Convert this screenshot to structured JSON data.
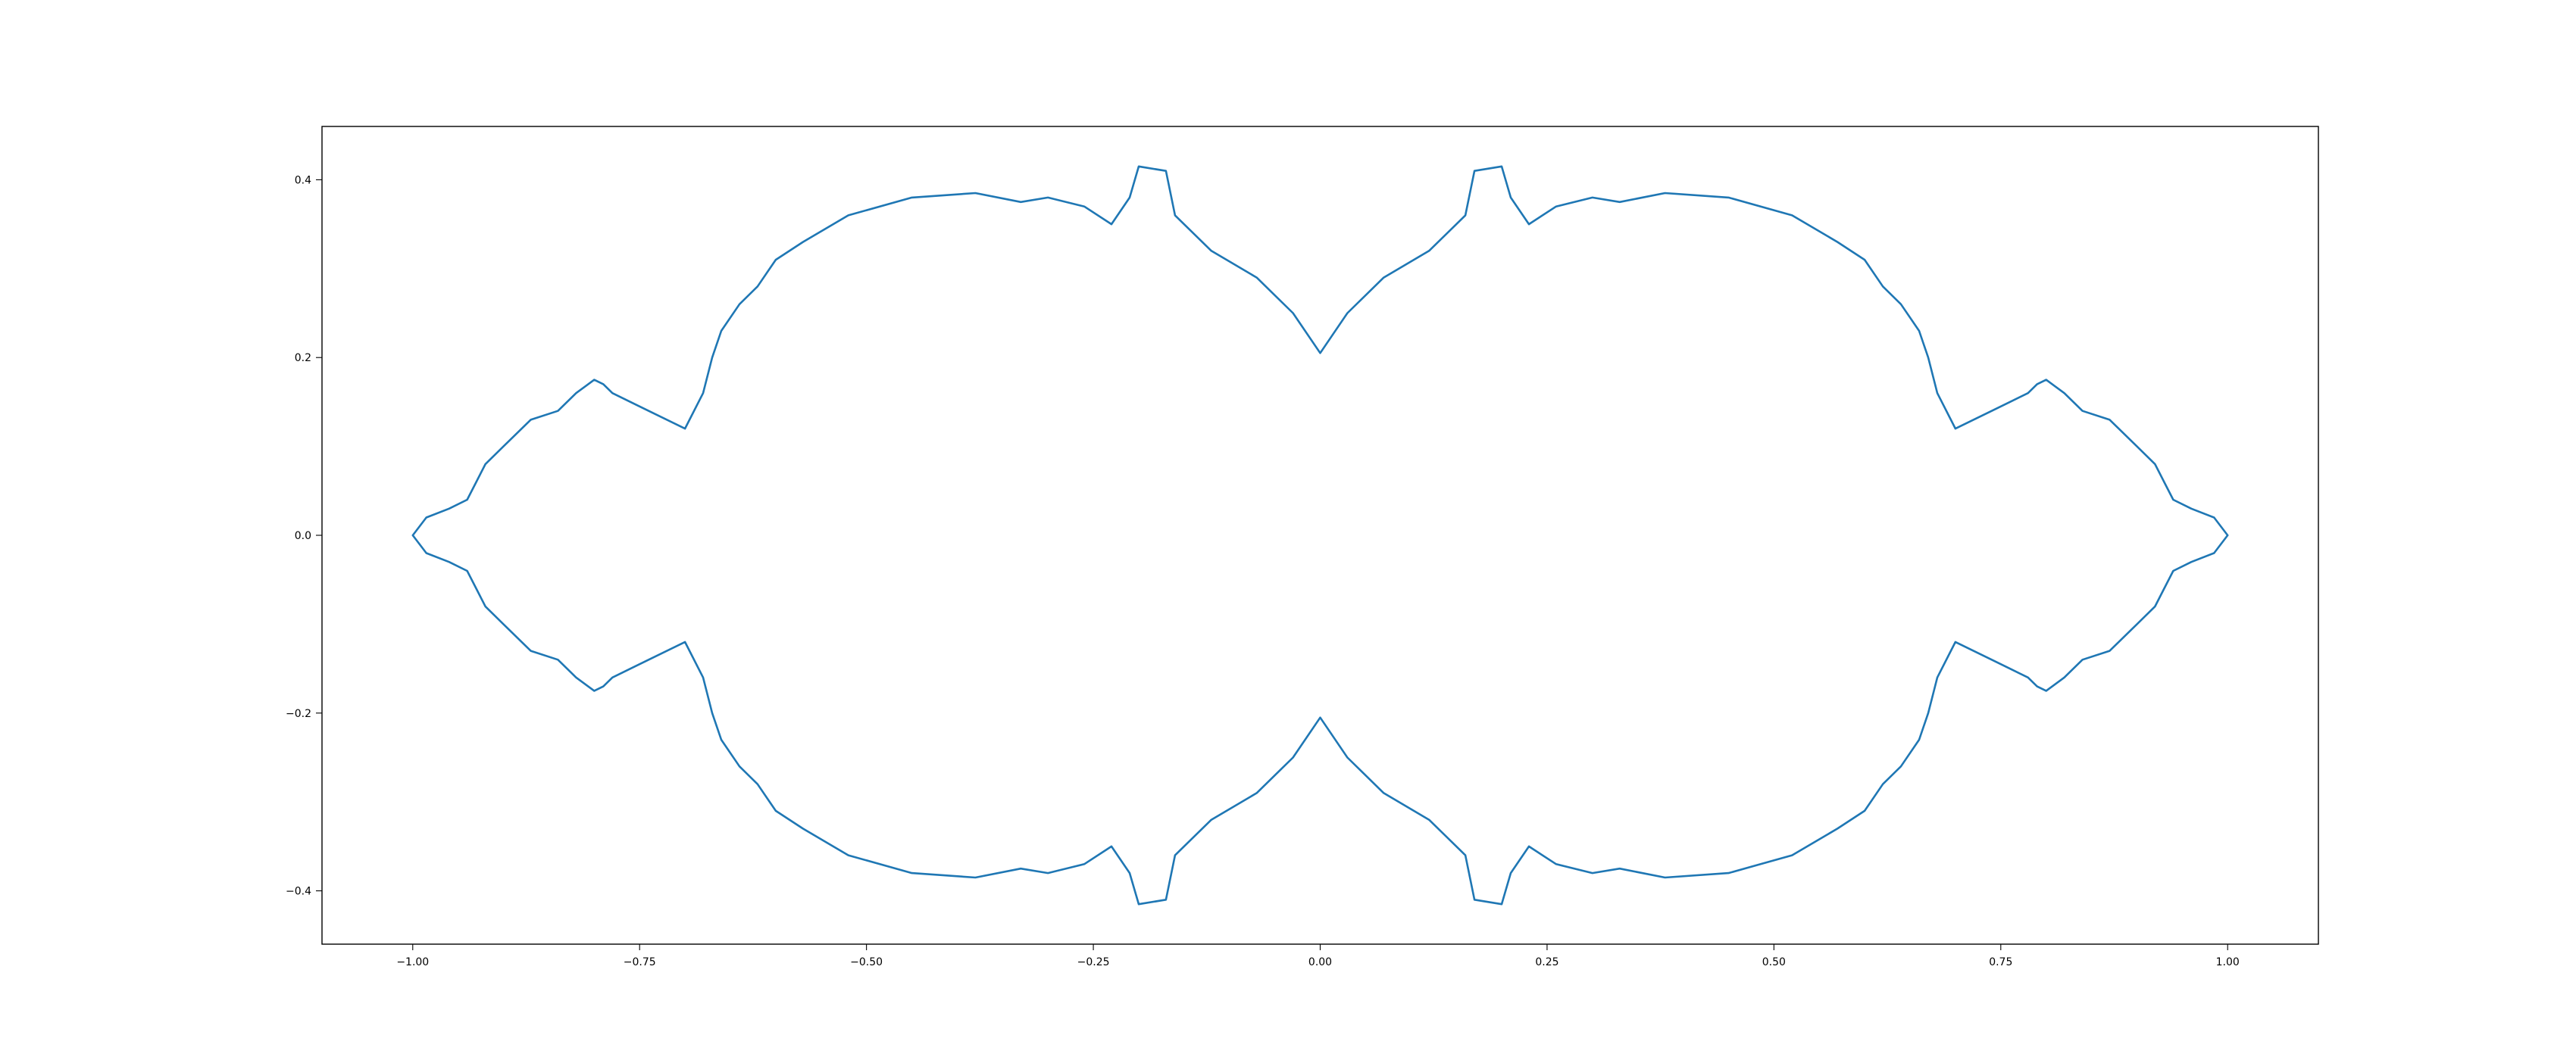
{
  "chart_data": {
    "type": "line",
    "title": "",
    "xlabel": "",
    "ylabel": "",
    "xlim": [
      -1.1,
      1.1
    ],
    "ylim": [
      -0.46,
      0.46
    ],
    "grid": false,
    "x_ticks": [
      {
        "value": -1.0,
        "label": "−1.00"
      },
      {
        "value": -0.75,
        "label": "−0.75"
      },
      {
        "value": -0.5,
        "label": "−0.50"
      },
      {
        "value": -0.25,
        "label": "−0.25"
      },
      {
        "value": 0.0,
        "label": "0.00"
      },
      {
        "value": 0.25,
        "label": "0.25"
      },
      {
        "value": 0.5,
        "label": "0.50"
      },
      {
        "value": 0.75,
        "label": "0.75"
      },
      {
        "value": 1.0,
        "label": "1.00"
      }
    ],
    "y_ticks": [
      {
        "value": -0.4,
        "label": "−0.4"
      },
      {
        "value": -0.2,
        "label": "−0.2"
      },
      {
        "value": 0.0,
        "label": "0.0"
      },
      {
        "value": 0.2,
        "label": "0.2"
      },
      {
        "value": 0.4,
        "label": "0.4"
      }
    ],
    "series": [
      {
        "color": "#1f77b4",
        "x": [
          1.0,
          0.985,
          0.96,
          0.94,
          0.93,
          0.92,
          0.9,
          0.87,
          0.84,
          0.82,
          0.8,
          0.79,
          0.78,
          0.76,
          0.74,
          0.7,
          0.68,
          0.67,
          0.66,
          0.64,
          0.62,
          0.6,
          0.57,
          0.52,
          0.45,
          0.38,
          0.33,
          0.3,
          0.26,
          0.23,
          0.21,
          0.2,
          0.17,
          0.16,
          0.12,
          0.07,
          0.03,
          0.0,
          -0.03,
          -0.07,
          -0.12,
          -0.16,
          -0.17,
          -0.2,
          -0.21,
          -0.23,
          -0.26,
          -0.3,
          -0.33,
          -0.38,
          -0.45,
          -0.52,
          -0.57,
          -0.6,
          -0.62,
          -0.64,
          -0.66,
          -0.67,
          -0.68,
          -0.7,
          -0.74,
          -0.76,
          -0.78,
          -0.79,
          -0.8,
          -0.82,
          -0.84,
          -0.87,
          -0.9,
          -0.92,
          -0.93,
          -0.94,
          -0.96,
          -0.985,
          -1.0,
          -0.985,
          -0.96,
          -0.94,
          -0.93,
          -0.92,
          -0.9,
          -0.87,
          -0.84,
          -0.82,
          -0.8,
          -0.79,
          -0.78,
          -0.76,
          -0.74,
          -0.7,
          -0.68,
          -0.67,
          -0.66,
          -0.64,
          -0.62,
          -0.6,
          -0.57,
          -0.52,
          -0.45,
          -0.38,
          -0.33,
          -0.3,
          -0.26,
          -0.23,
          -0.21,
          -0.2,
          -0.17,
          -0.16,
          -0.12,
          -0.07,
          -0.03,
          0.0,
          0.03,
          0.07,
          0.12,
          0.16,
          0.17,
          0.2,
          0.21,
          0.23,
          0.26,
          0.3,
          0.33,
          0.38,
          0.45,
          0.52,
          0.57,
          0.6,
          0.62,
          0.64,
          0.66,
          0.67,
          0.68,
          0.7,
          0.74,
          0.76,
          0.78,
          0.79,
          0.8,
          0.82,
          0.84,
          0.87,
          0.9,
          0.92,
          0.93,
          0.94,
          0.96,
          0.985,
          1.0
        ],
        "y": [
          0.0,
          0.02,
          0.03,
          0.04,
          0.06,
          0.08,
          0.1,
          0.13,
          0.14,
          0.16,
          0.175,
          0.17,
          0.16,
          0.15,
          0.14,
          0.12,
          0.16,
          0.2,
          0.23,
          0.26,
          0.28,
          0.31,
          0.33,
          0.36,
          0.38,
          0.385,
          0.375,
          0.38,
          0.37,
          0.35,
          0.38,
          0.415,
          0.41,
          0.36,
          0.32,
          0.29,
          0.25,
          0.205,
          0.25,
          0.29,
          0.32,
          0.36,
          0.41,
          0.415,
          0.38,
          0.35,
          0.37,
          0.38,
          0.375,
          0.385,
          0.38,
          0.36,
          0.33,
          0.31,
          0.28,
          0.26,
          0.23,
          0.2,
          0.16,
          0.12,
          0.14,
          0.15,
          0.16,
          0.17,
          0.175,
          0.16,
          0.14,
          0.13,
          0.1,
          0.08,
          0.06,
          0.04,
          0.03,
          0.02,
          0.0,
          -0.02,
          -0.03,
          -0.04,
          -0.06,
          -0.08,
          -0.1,
          -0.13,
          -0.14,
          -0.16,
          -0.175,
          -0.17,
          -0.16,
          -0.15,
          -0.14,
          -0.12,
          -0.16,
          -0.2,
          -0.23,
          -0.26,
          -0.28,
          -0.31,
          -0.33,
          -0.36,
          -0.38,
          -0.385,
          -0.375,
          -0.38,
          -0.37,
          -0.35,
          -0.38,
          -0.415,
          -0.41,
          -0.36,
          -0.32,
          -0.29,
          -0.25,
          -0.205,
          -0.25,
          -0.29,
          -0.32,
          -0.36,
          -0.41,
          -0.415,
          -0.38,
          -0.35,
          -0.37,
          -0.38,
          -0.375,
          -0.385,
          -0.38,
          -0.36,
          -0.33,
          -0.31,
          -0.28,
          -0.26,
          -0.23,
          -0.2,
          -0.16,
          -0.12,
          -0.14,
          -0.15,
          -0.16,
          -0.17,
          -0.175,
          -0.16,
          -0.14,
          -0.13,
          -0.1,
          -0.08,
          -0.06,
          -0.04,
          -0.03,
          -0.02,
          0.0
        ]
      }
    ]
  }
}
